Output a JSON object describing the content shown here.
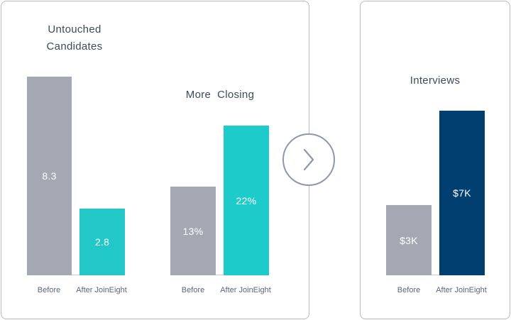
{
  "chart_data": [
    {
      "type": "bar",
      "title": "Untouched Candidates",
      "categories": [
        "Before",
        "After JoinEight"
      ],
      "values": [
        8.3,
        2.8
      ],
      "value_labels": [
        "8.3",
        "2.8"
      ],
      "colors": [
        "#a3a8b3",
        "#22c8c8"
      ]
    },
    {
      "type": "bar",
      "title": "More  Closing",
      "categories": [
        "Before",
        "After JoinEight"
      ],
      "values": [
        13,
        22
      ],
      "value_labels": [
        "13%",
        "22%"
      ],
      "colors": [
        "#a3a8b3",
        "#1ecbcb"
      ]
    },
    {
      "type": "bar",
      "title": "Interviews",
      "categories": [
        "Before",
        "After JoinEight"
      ],
      "values": [
        3,
        7
      ],
      "value_labels": [
        "$3K",
        "$7K"
      ],
      "colors": [
        "#a3a8b3",
        "#003f6f"
      ]
    }
  ],
  "icons": {
    "next": "chevron-right-icon"
  }
}
